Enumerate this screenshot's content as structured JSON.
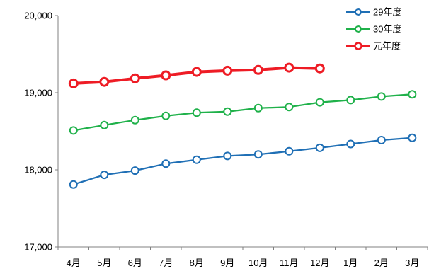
{
  "chart_data": {
    "type": "line",
    "title": "",
    "xlabel": "",
    "ylabel": "",
    "categories": [
      "4月",
      "5月",
      "6月",
      "7月",
      "8月",
      "9月",
      "10月",
      "11月",
      "12月",
      "1月",
      "2月",
      "3月"
    ],
    "ylim": [
      17000,
      20000
    ],
    "yticks": [
      17000,
      18000,
      19000,
      20000
    ],
    "ytick_labels": [
      "17,000",
      "18,000",
      "19,000",
      "20,000"
    ],
    "grid": false,
    "legend_position": "top-right",
    "series": [
      {
        "name": "29年度",
        "color": "#1f6fb5",
        "line_width": "normal",
        "values": [
          17810,
          17935,
          17990,
          18080,
          18130,
          18180,
          18200,
          18240,
          18285,
          18335,
          18385,
          18415
        ]
      },
      {
        "name": "30年度",
        "color": "#1fb14a",
        "line_width": "normal",
        "values": [
          18510,
          18580,
          18645,
          18700,
          18740,
          18755,
          18800,
          18815,
          18875,
          18905,
          18950,
          18980
        ]
      },
      {
        "name": "元年度",
        "color": "#ee1c25",
        "line_width": "bold",
        "values": [
          19120,
          19140,
          19185,
          19225,
          19270,
          19285,
          19295,
          19325,
          19315,
          null,
          null,
          null
        ]
      }
    ]
  }
}
